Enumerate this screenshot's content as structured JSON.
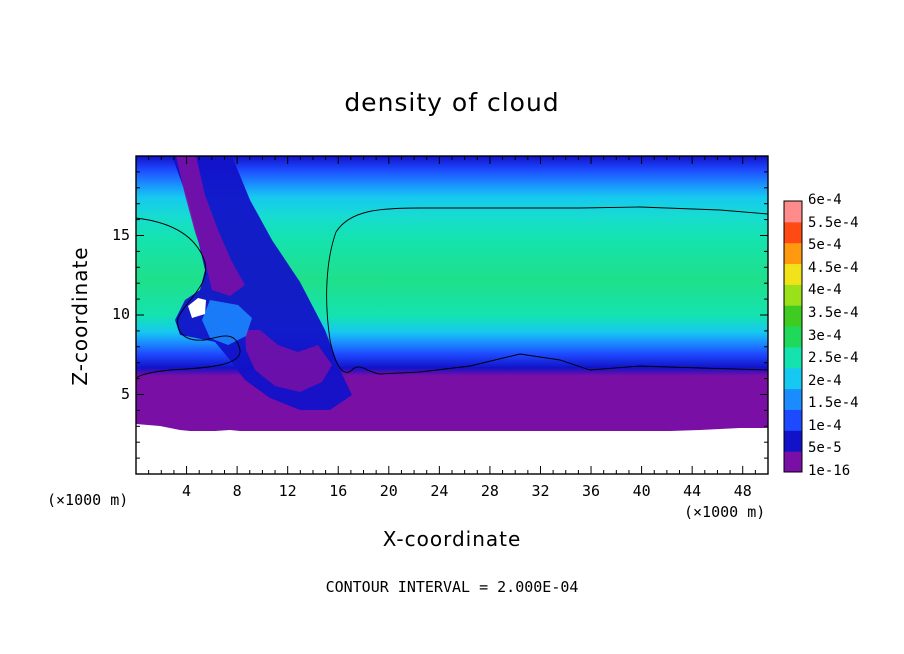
{
  "chart_data": {
    "type": "heatmap",
    "title": "density of cloud",
    "xlabel": "X-coordinate",
    "ylabel": "Z-coordinate",
    "x_unit": "(×1000 m)",
    "y_unit": "(×1000 m)",
    "xlim": [
      0,
      50
    ],
    "ylim": [
      0,
      20
    ],
    "x_ticks": [
      4,
      8,
      12,
      16,
      20,
      24,
      28,
      32,
      36,
      40,
      44,
      48
    ],
    "y_ticks": [
      5,
      10,
      15
    ],
    "colorbar": {
      "levels": [
        "1e-16",
        "5e-5",
        "1e-4",
        "1.5e-4",
        "2e-4",
        "2.5e-4",
        "3e-4",
        "3.5e-4",
        "4e-4",
        "4.5e-4",
        "5e-4",
        "5.5e-4",
        "6e-4"
      ],
      "colors": [
        "#7a0fa6",
        "#1212c8",
        "#1e4aff",
        "#1b8cff",
        "#16c9f0",
        "#14e3b0",
        "#1fd95a",
        "#3fcc22",
        "#9ae11a",
        "#f2e21a",
        "#ff9a10",
        "#ff4a14",
        "#ff8c8c"
      ]
    },
    "contour_interval": "CONTOUR INTERVAL = 2.000E-04",
    "features": {
      "cloud_base_z_km": 3.3,
      "main_layer_z_km": [
        6.5,
        16.6
      ],
      "peak_density": "2.5e-4",
      "plume_x_km": [
        2,
        16
      ]
    }
  }
}
